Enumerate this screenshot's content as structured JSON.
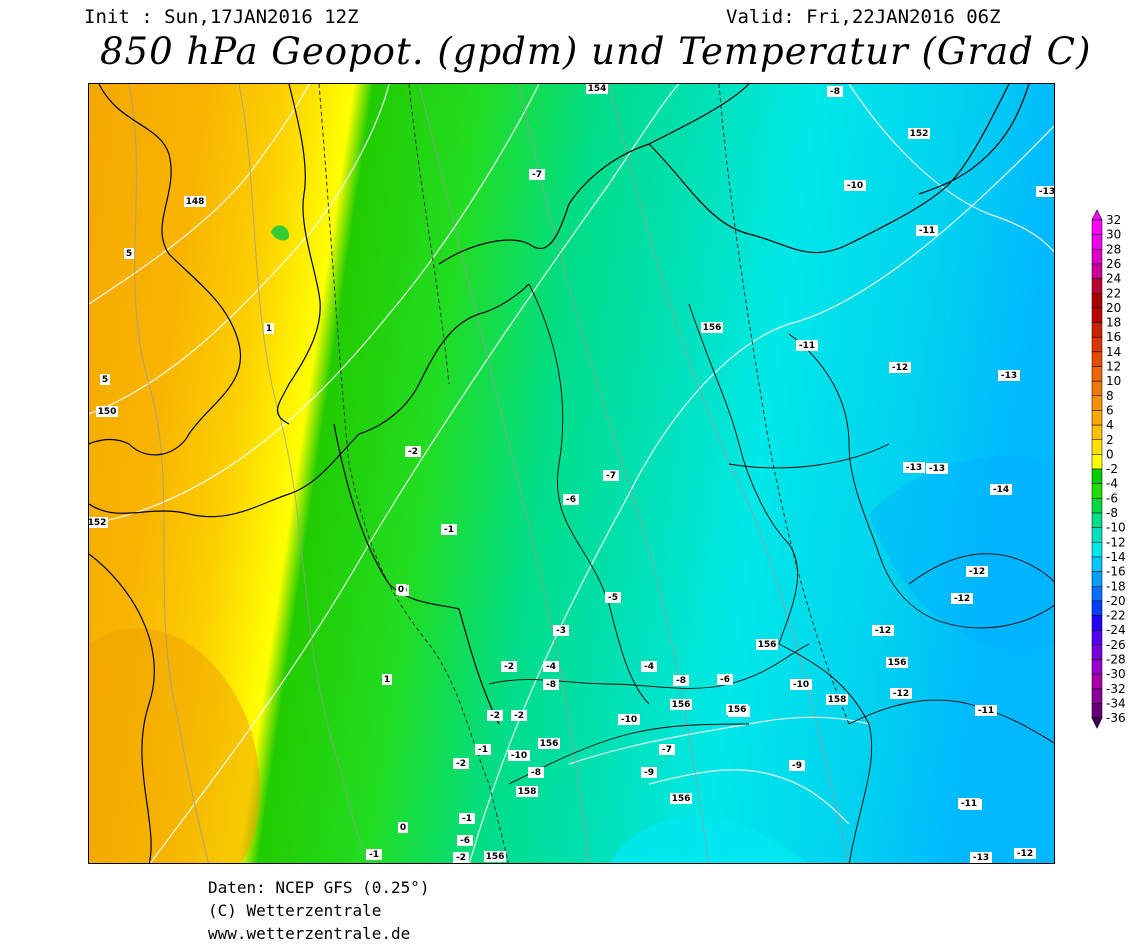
{
  "header": {
    "init": "Init : Sun,17JAN2016 12Z",
    "valid": "Valid: Fri,22JAN2016 06Z",
    "title": "850 hPa Geopot. (gpdm) und Temperatur (Grad C)"
  },
  "legend": {
    "labels": [
      "32",
      "30",
      "28",
      "26",
      "24",
      "22",
      "20",
      "18",
      "16",
      "14",
      "12",
      "10",
      "8",
      "6",
      "4",
      "2",
      "0",
      "-2",
      "-4",
      "-6",
      "-8",
      "-10",
      "-12",
      "-14",
      "-16",
      "-18",
      "-20",
      "-22",
      "-24",
      "-26",
      "-28",
      "-30",
      "-32",
      "-34",
      "-36"
    ],
    "colors": [
      "#ff00ff",
      "#ee00ee",
      "#dd00cc",
      "#cc0099",
      "#bb0033",
      "#aa0000",
      "#bb0000",
      "#cc2200",
      "#dd3300",
      "#e64a00",
      "#ee6600",
      "#f07800",
      "#f59000",
      "#f8a800",
      "#fac000",
      "#fde000",
      "#ffff00",
      "#00cc00",
      "#22dd00",
      "#00d840",
      "#00dd88",
      "#00e0c0",
      "#00e8e8",
      "#00c8ff",
      "#00a0ff",
      "#0070ff",
      "#0040ff",
      "#2200ff",
      "#5500ee",
      "#7700dd",
      "#9900cc",
      "#aa00aa",
      "#880099",
      "#660077",
      "#440055"
    ]
  },
  "map": {
    "temperature_labels": [
      {
        "t": "-7"
      },
      {
        "t": "-8"
      },
      {
        "t": "-10"
      },
      {
        "t": "-11"
      },
      {
        "t": "-11"
      },
      {
        "t": "-12"
      },
      {
        "t": "-13"
      },
      {
        "t": "-2"
      },
      {
        "t": "-7"
      },
      {
        "t": "-6"
      },
      {
        "t": "-1"
      },
      {
        "t": "0"
      },
      {
        "t": "-5"
      },
      {
        "t": "-3"
      },
      {
        "t": "-13"
      },
      {
        "t": "-13"
      },
      {
        "t": "-14"
      },
      {
        "t": "-12"
      },
      {
        "t": "-12"
      },
      {
        "t": "-12"
      },
      {
        "t": "-12"
      },
      {
        "t": "-11"
      },
      {
        "t": "-11"
      },
      {
        "t": "-13"
      },
      {
        "t": "-12"
      },
      {
        "t": "-9"
      },
      {
        "t": "-10"
      },
      {
        "t": "-2"
      },
      {
        "t": "-4"
      },
      {
        "t": "-8"
      },
      {
        "t": "-4"
      },
      {
        "t": "-8"
      },
      {
        "t": "-6"
      },
      {
        "t": "-10"
      },
      {
        "t": "-7"
      },
      {
        "t": "-2"
      },
      {
        "t": "-2"
      },
      {
        "t": "-1"
      },
      {
        "t": "-2"
      },
      {
        "t": "-8"
      },
      {
        "t": "-9"
      },
      {
        "t": "-10"
      },
      {
        "t": "-1"
      },
      {
        "t": "-6"
      },
      {
        "t": "0"
      },
      {
        "t": "-2"
      },
      {
        "t": "-1"
      },
      {
        "t": "-11"
      },
      {
        "t": "-13"
      }
    ],
    "geopotential_labels": [
      {
        "t": "154"
      },
      {
        "t": "152"
      },
      {
        "t": "148"
      },
      {
        "t": "150"
      },
      {
        "t": "152"
      },
      {
        "t": "156"
      },
      {
        "t": "156"
      },
      {
        "t": "156"
      },
      {
        "t": "156"
      },
      {
        "t": "156"
      },
      {
        "t": "158"
      },
      {
        "t": "156"
      },
      {
        "t": "156"
      },
      {
        "t": "158"
      },
      {
        "t": "156"
      },
      {
        "t": "156"
      }
    ],
    "contour_labels": [
      {
        "t": "5"
      },
      {
        "t": "5"
      },
      {
        "t": "1"
      },
      {
        "t": "1"
      },
      {
        "t": "0"
      }
    ]
  },
  "credits": {
    "line1": "Daten: NCEP GFS (0.25°)",
    "line2": "(C) Wetterzentrale",
    "line3": "www.wetterzentrale.de"
  }
}
